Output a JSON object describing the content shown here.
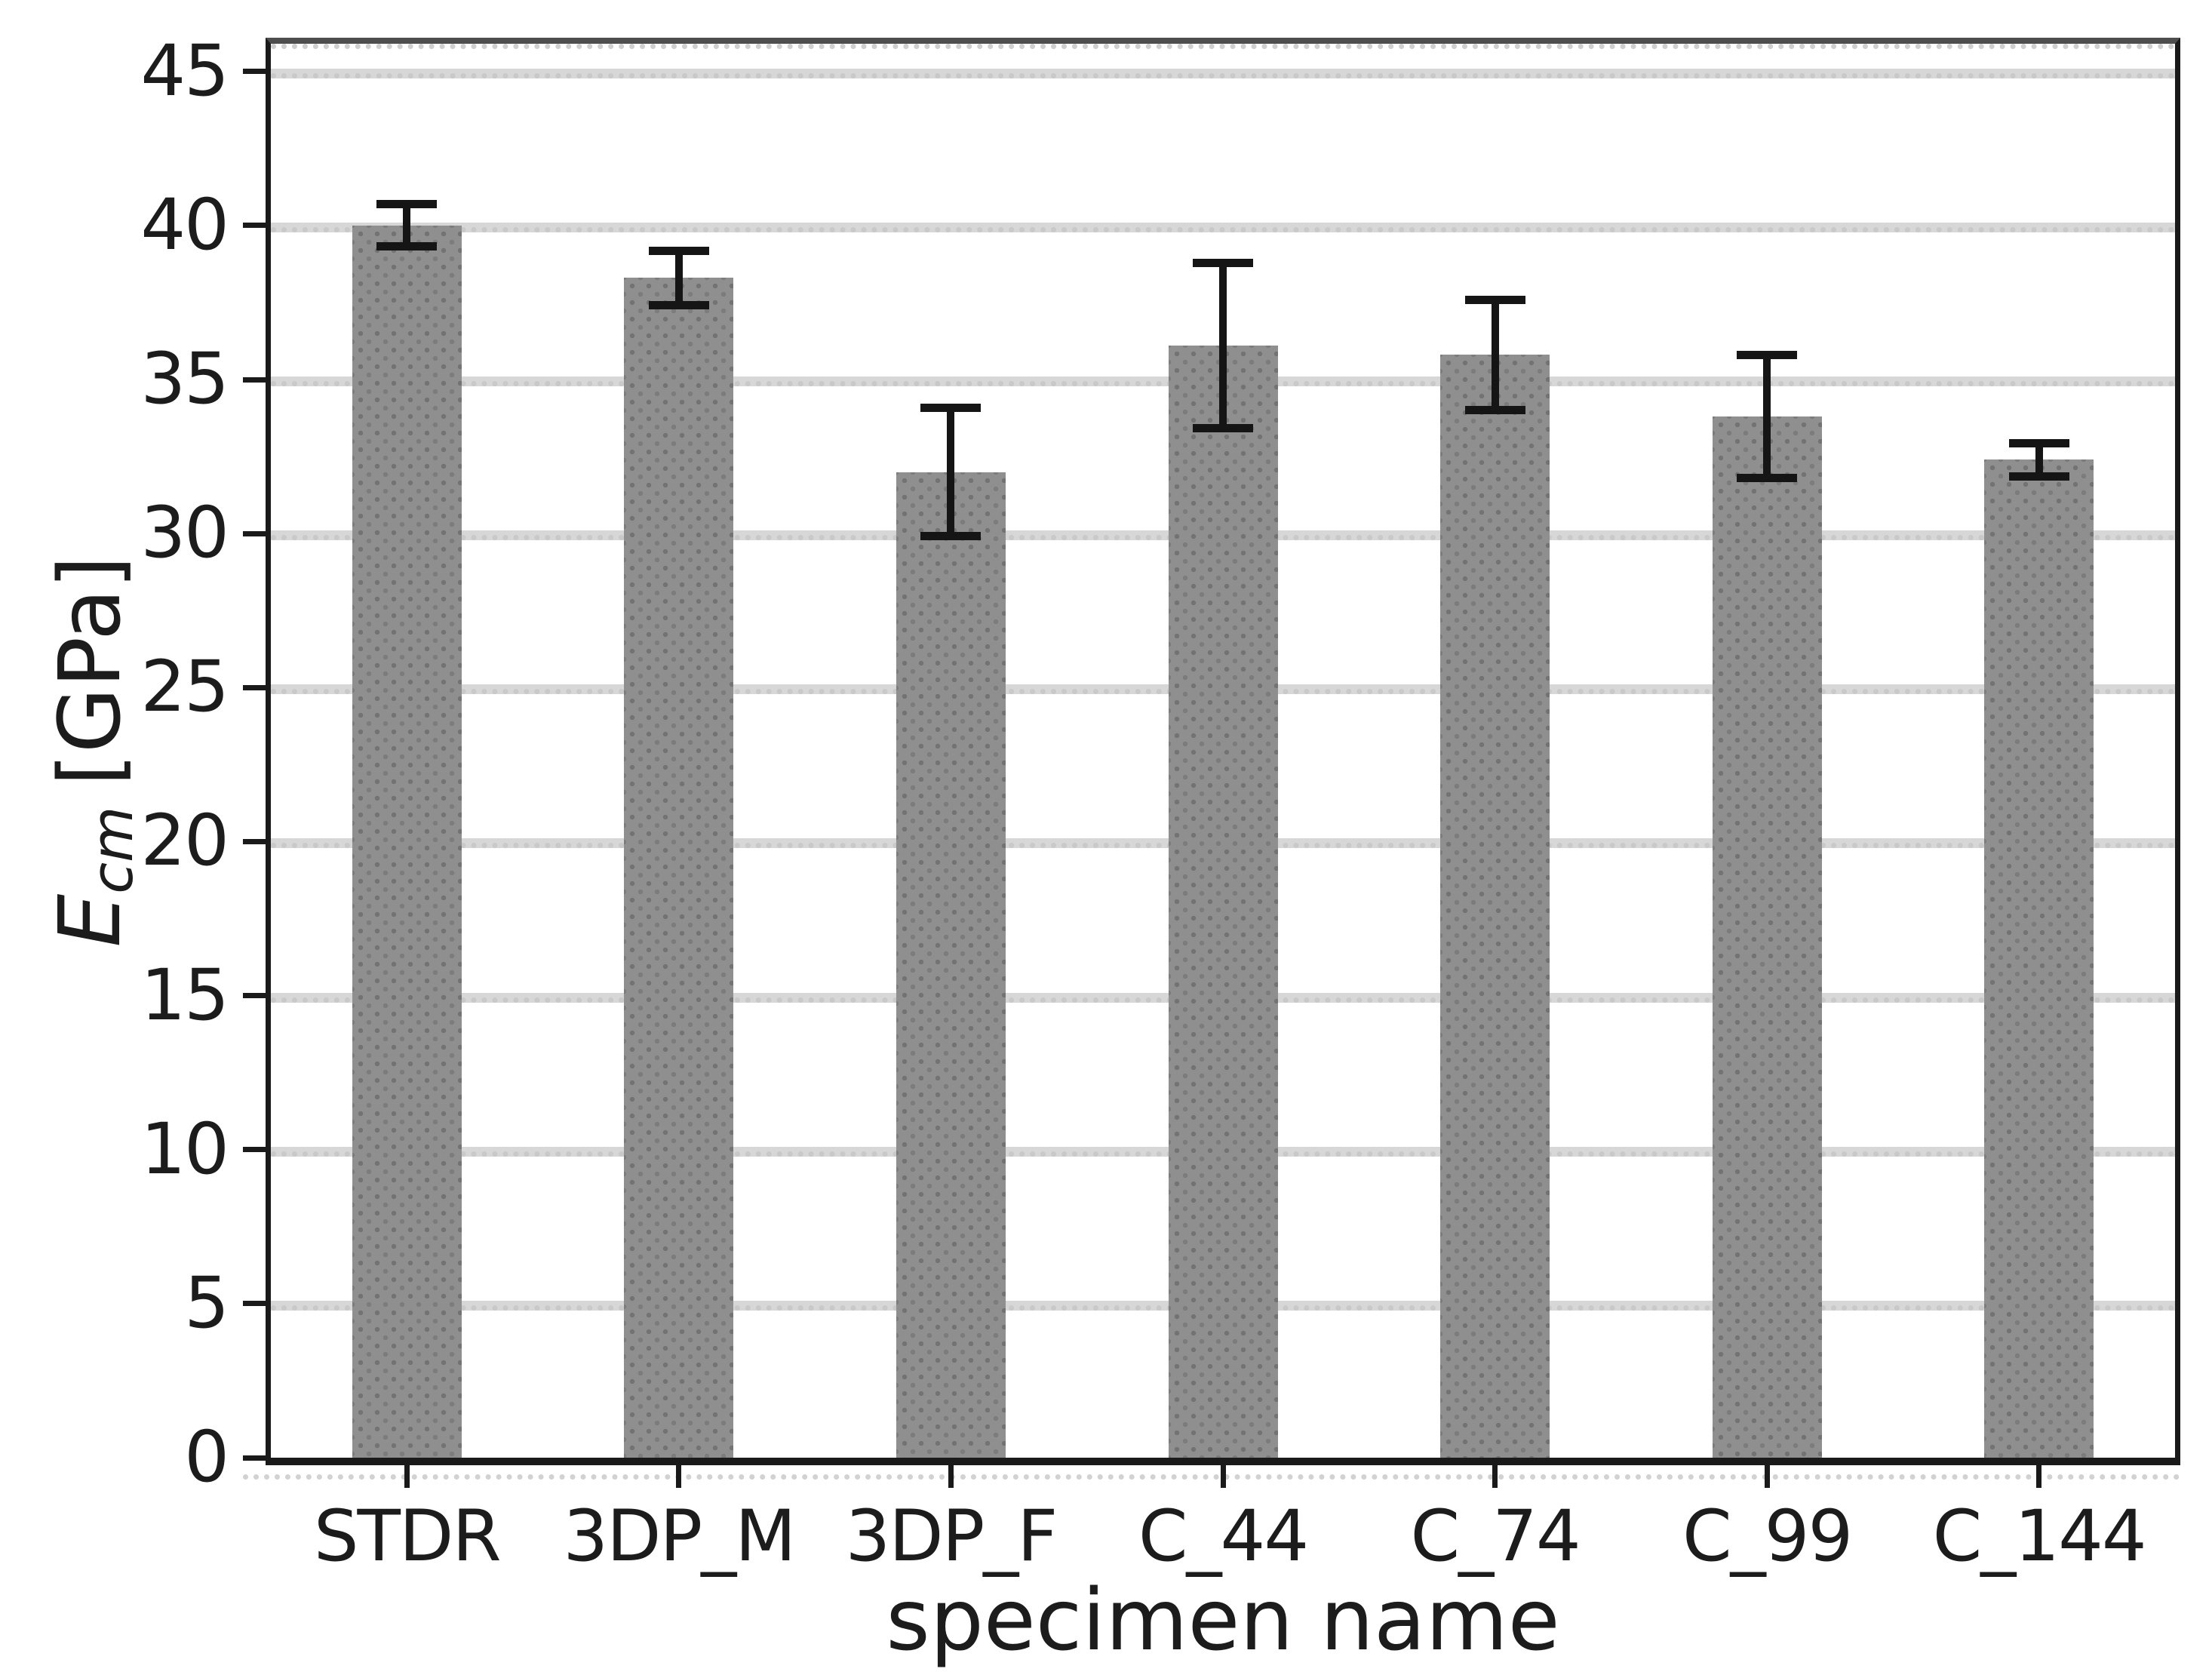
{
  "figure": {
    "xlabel": "specimen name",
    "ylabel": {
      "var": "E",
      "sub": "cm",
      "unit": "[GPa]"
    }
  },
  "chart_data": {
    "type": "bar",
    "title": "",
    "xlabel": "specimen name",
    "ylabel": "E_cm [GPa]",
    "categories": [
      "STDR",
      "3DP_M",
      "3DP_F",
      "C_44",
      "C_74",
      "C_99",
      "C_144"
    ],
    "series": [
      {
        "name": "E_cm",
        "values": [
          40.0,
          38.3,
          32.0,
          36.1,
          35.8,
          33.8,
          32.4
        ],
        "errors": [
          0.7,
          0.9,
          2.1,
          2.7,
          1.8,
          2.0,
          0.55
        ]
      }
    ],
    "y_ticks": [
      0,
      5,
      10,
      15,
      20,
      25,
      30,
      35,
      40,
      45
    ],
    "ylim": [
      0,
      45.9
    ],
    "grid": "horizontal-dotted",
    "legend": "none",
    "bar_color": "#8f8f8f",
    "bar_dot_color": "#737373",
    "error_color": "#151515",
    "gridline_color": "#d7d7d7",
    "spine_color": "#1a1a1a",
    "top_spine_color": "#4e4e4e"
  }
}
